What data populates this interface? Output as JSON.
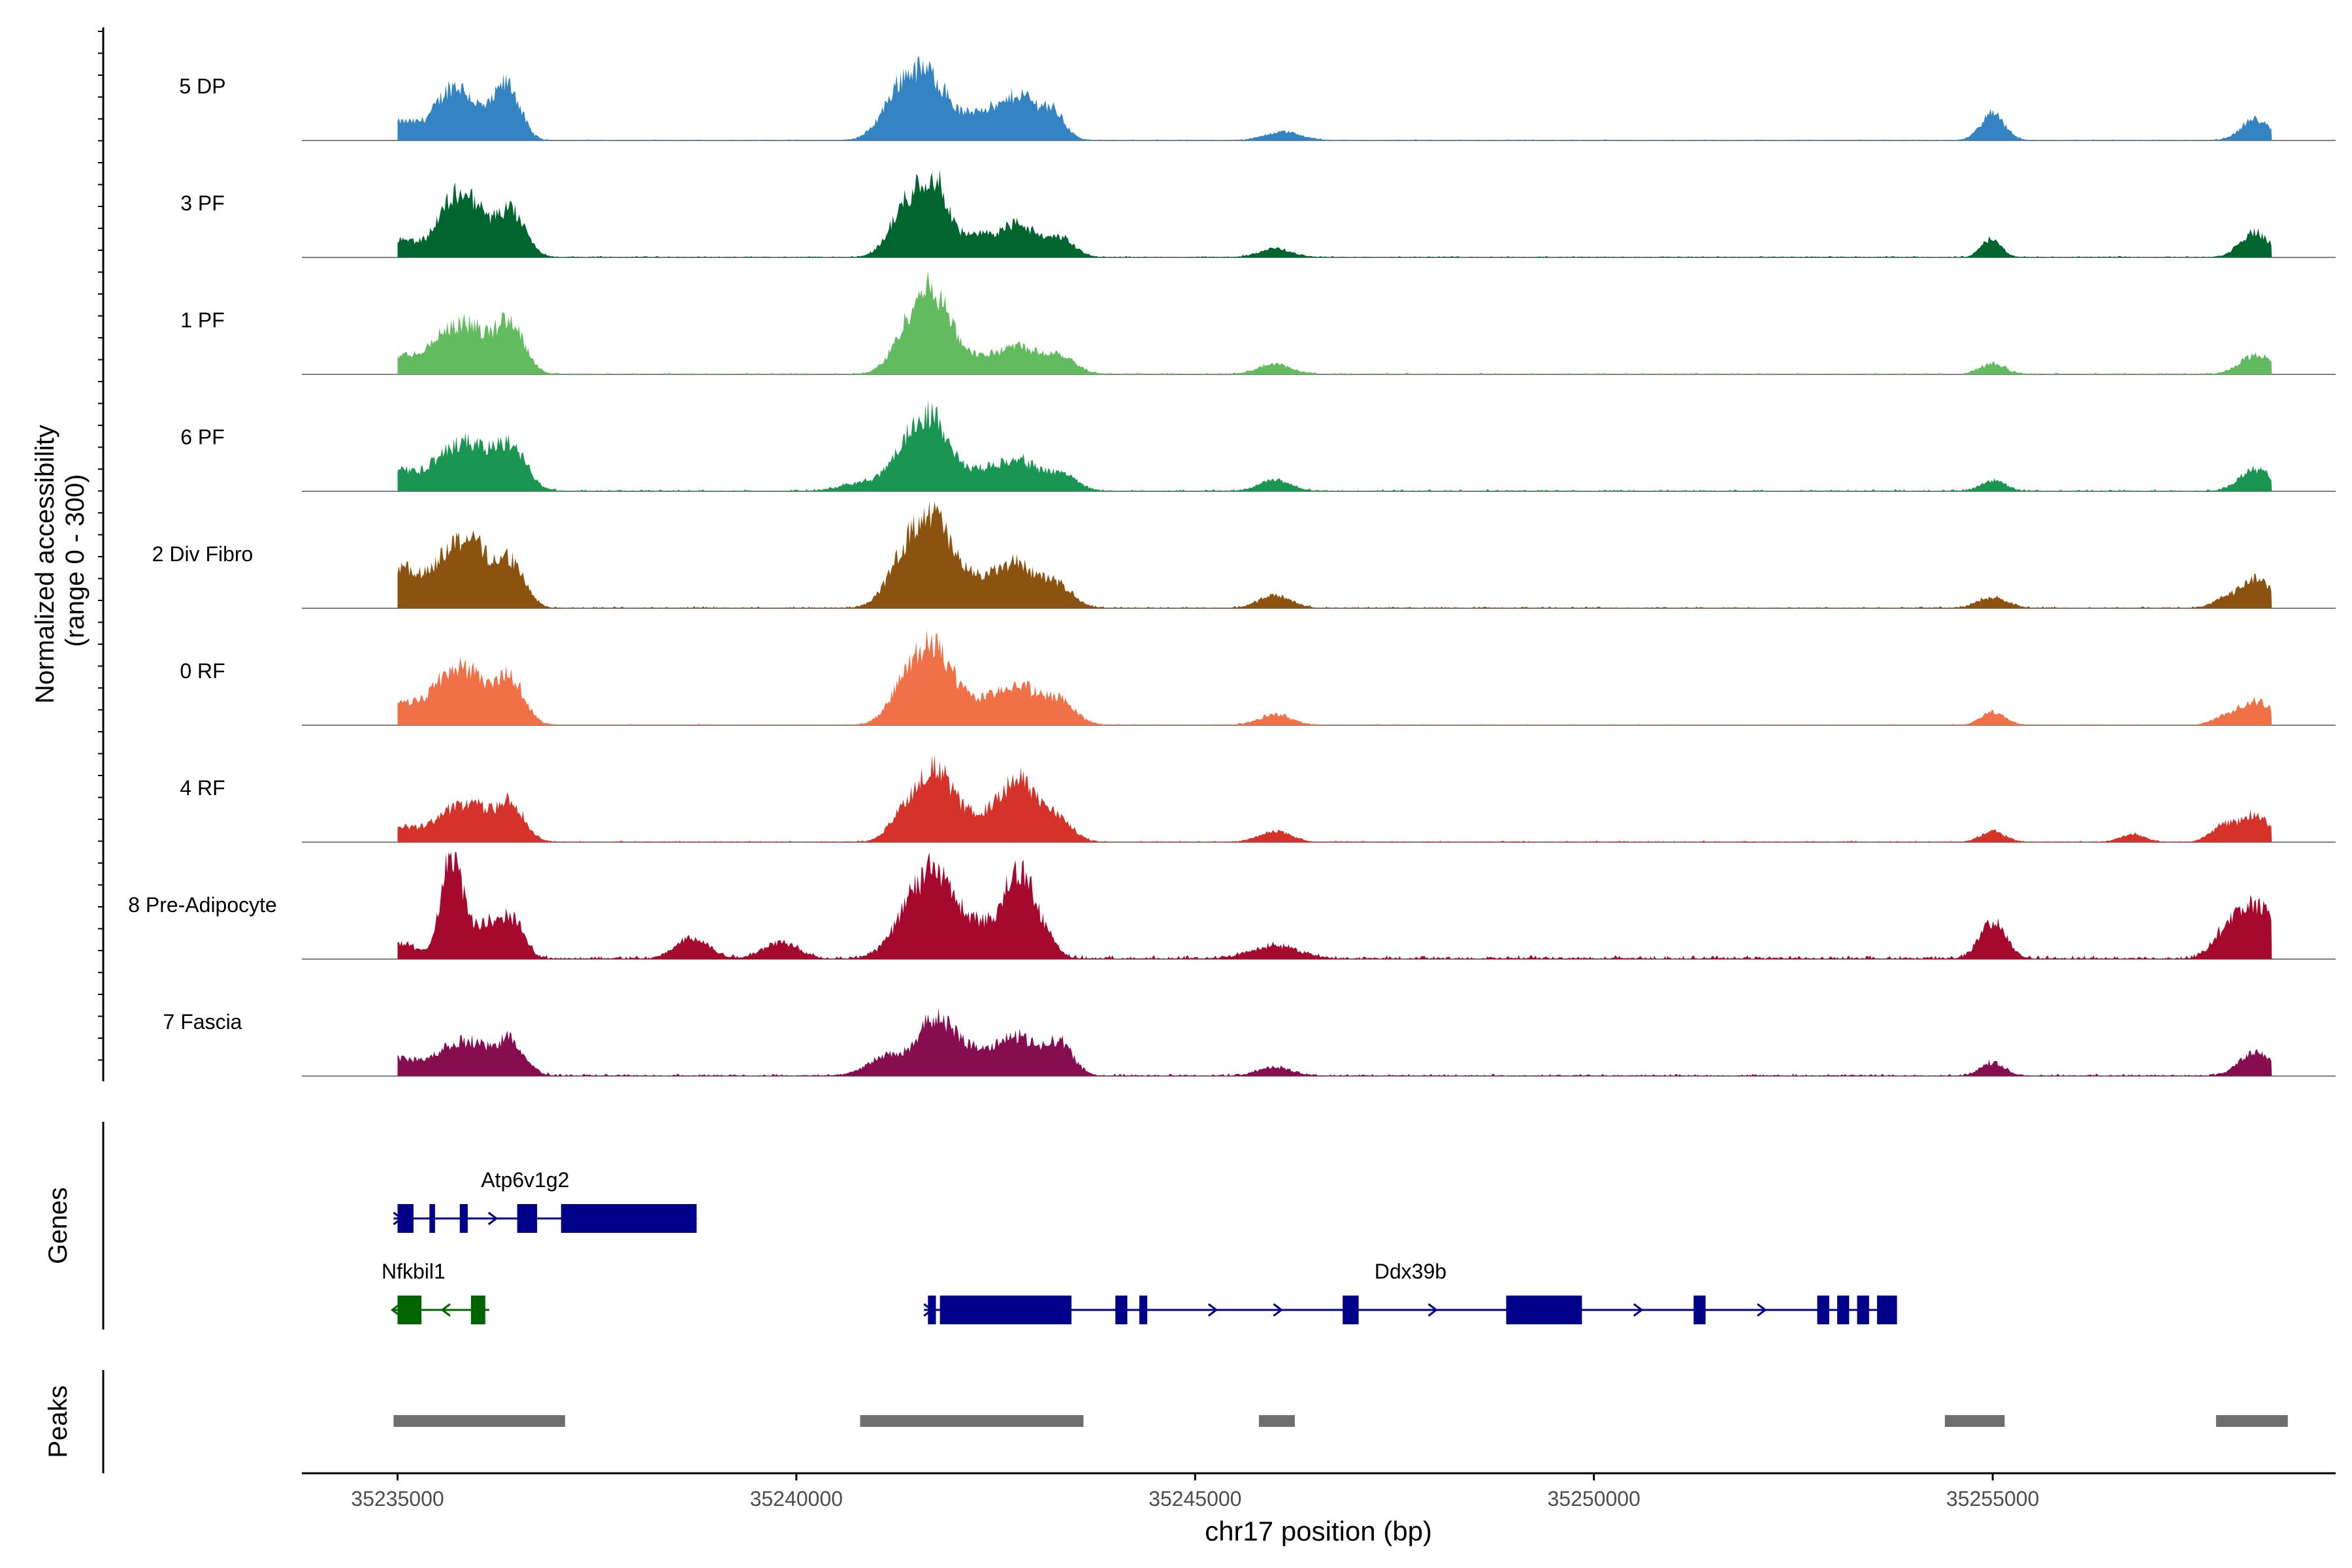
{
  "chart_data": {
    "type": "area",
    "title": "",
    "xlabel": "chr17 position (bp)",
    "ylabel_line1": "Normalized accessibility",
    "ylabel_line2": "(range 0 - 300)",
    "xlim": [
      35233800,
      35259300
    ],
    "y_range": [
      0,
      300
    ],
    "x_ticks": [
      35235000,
      35240000,
      35245000,
      35250000,
      35255000
    ],
    "x_tick_labels": [
      "35235000",
      "35240000",
      "35245000",
      "35250000",
      "35255000"
    ],
    "track_x_start": 35235000,
    "track_x_end": 35258500,
    "tracks": [
      {
        "name": "5 DP",
        "color": "#3484c4",
        "peaks": [
          [
            35235050,
            0.17,
            240
          ],
          [
            35235680,
            0.45,
            210
          ],
          [
            35236000,
            0.17,
            200
          ],
          [
            35236380,
            0.5,
            160
          ],
          [
            35241350,
            0.52,
            240
          ],
          [
            35241750,
            0.45,
            220
          ],
          [
            35242350,
            0.28,
            200
          ],
          [
            35242800,
            0.4,
            180
          ],
          [
            35243200,
            0.28,
            160
          ],
          [
            35246100,
            0.08,
            220
          ],
          [
            35255000,
            0.25,
            150
          ],
          [
            35258300,
            0.2,
            180
          ]
        ],
        "noise": 0.012
      },
      {
        "name": "3 PF",
        "color": "#00652f",
        "peaks": [
          [
            35235000,
            0.17,
            280
          ],
          [
            35235700,
            0.5,
            200
          ],
          [
            35236000,
            0.3,
            180
          ],
          [
            35236420,
            0.42,
            180
          ],
          [
            35241400,
            0.5,
            210
          ],
          [
            35241750,
            0.6,
            170
          ],
          [
            35242300,
            0.2,
            250
          ],
          [
            35242800,
            0.28,
            200
          ],
          [
            35243300,
            0.18,
            180
          ],
          [
            35246000,
            0.08,
            200
          ],
          [
            35254980,
            0.17,
            120
          ],
          [
            35258280,
            0.23,
            180
          ]
        ],
        "noise": 0.015
      },
      {
        "name": "1 PF",
        "color": "#62bb5f",
        "peaks": [
          [
            35235000,
            0.16,
            260
          ],
          [
            35235700,
            0.43,
            260
          ],
          [
            35236000,
            0.17,
            150
          ],
          [
            35236400,
            0.5,
            180
          ],
          [
            35241450,
            0.44,
            220
          ],
          [
            35241750,
            0.52,
            200
          ],
          [
            35242200,
            0.16,
            350
          ],
          [
            35242800,
            0.22,
            230
          ],
          [
            35243300,
            0.17,
            200
          ],
          [
            35246000,
            0.1,
            200
          ],
          [
            35255000,
            0.1,
            150
          ],
          [
            35258300,
            0.18,
            200
          ]
        ],
        "noise": 0.018
      },
      {
        "name": "6 PF",
        "color": "#1b9652",
        "peaks": [
          [
            35235000,
            0.2,
            260
          ],
          [
            35235700,
            0.38,
            240
          ],
          [
            35236000,
            0.2,
            160
          ],
          [
            35236400,
            0.45,
            200
          ],
          [
            35240900,
            0.08,
            300
          ],
          [
            35241450,
            0.45,
            220
          ],
          [
            35241750,
            0.47,
            190
          ],
          [
            35242300,
            0.2,
            300
          ],
          [
            35242800,
            0.25,
            200
          ],
          [
            35243300,
            0.17,
            200
          ],
          [
            35246000,
            0.1,
            200
          ],
          [
            35255000,
            0.1,
            150
          ],
          [
            35258300,
            0.2,
            200
          ]
        ],
        "noise": 0.022
      },
      {
        "name": "2 Div Fibro",
        "color": "#8c520f",
        "peaks": [
          [
            35235000,
            0.38,
            240
          ],
          [
            35235700,
            0.55,
            250
          ],
          [
            35236000,
            0.3,
            160
          ],
          [
            35236400,
            0.45,
            180
          ],
          [
            35241400,
            0.48,
            240
          ],
          [
            35241750,
            0.68,
            220
          ],
          [
            35242300,
            0.25,
            250
          ],
          [
            35242800,
            0.38,
            230
          ],
          [
            35243300,
            0.2,
            180
          ],
          [
            35246000,
            0.12,
            200
          ],
          [
            35255000,
            0.1,
            180
          ],
          [
            35258300,
            0.27,
            200
          ],
          [
            35257900,
            0.07,
            150
          ]
        ],
        "noise": 0.02
      },
      {
        "name": "0 RF",
        "color": "#f07048",
        "peaks": [
          [
            35235000,
            0.2,
            250
          ],
          [
            35235700,
            0.5,
            260
          ],
          [
            35236000,
            0.17,
            150
          ],
          [
            35236400,
            0.45,
            180
          ],
          [
            35241400,
            0.38,
            220
          ],
          [
            35241750,
            0.58,
            220
          ],
          [
            35242300,
            0.2,
            300
          ],
          [
            35242800,
            0.32,
            230
          ],
          [
            35243300,
            0.22,
            200
          ],
          [
            35246000,
            0.1,
            200
          ],
          [
            35255000,
            0.12,
            150
          ],
          [
            35257900,
            0.07,
            150
          ],
          [
            35258300,
            0.22,
            200
          ]
        ],
        "noise": 0.012
      },
      {
        "name": "4 RF",
        "color": "#d5332a",
        "peaks": [
          [
            35235000,
            0.15,
            240
          ],
          [
            35235700,
            0.3,
            240
          ],
          [
            35236000,
            0.18,
            150
          ],
          [
            35236400,
            0.38,
            180
          ],
          [
            35241400,
            0.3,
            200
          ],
          [
            35241750,
            0.55,
            200
          ],
          [
            35242200,
            0.22,
            300
          ],
          [
            35242800,
            0.55,
            240
          ],
          [
            35243300,
            0.18,
            180
          ],
          [
            35246000,
            0.1,
            200
          ],
          [
            35255000,
            0.1,
            150
          ],
          [
            35256750,
            0.07,
            150
          ],
          [
            35257900,
            0.15,
            160
          ],
          [
            35258300,
            0.25,
            180
          ]
        ],
        "noise": 0.015
      },
      {
        "name": "8 Pre-Adipocyte",
        "color": "#a6092e",
        "peaks": [
          [
            35235000,
            0.15,
            220
          ],
          [
            35235650,
            0.75,
            120
          ],
          [
            35235800,
            0.35,
            140
          ],
          [
            35236150,
            0.3,
            140
          ],
          [
            35236450,
            0.35,
            140
          ],
          [
            35238700,
            0.2,
            200
          ],
          [
            35239800,
            0.15,
            220
          ],
          [
            35241500,
            0.5,
            260
          ],
          [
            35241800,
            0.45,
            220
          ],
          [
            35242300,
            0.3,
            300
          ],
          [
            35242750,
            0.6,
            160
          ],
          [
            35243000,
            0.35,
            180
          ],
          [
            35246000,
            0.12,
            300
          ],
          [
            35255000,
            0.35,
            160
          ],
          [
            35258300,
            0.5,
            260
          ],
          [
            35257900,
            0.15,
            160
          ]
        ],
        "noise": 0.04
      },
      {
        "name": "7 Fascia",
        "color": "#870d51",
        "peaks": [
          [
            35235000,
            0.16,
            240
          ],
          [
            35235700,
            0.28,
            240
          ],
          [
            35236000,
            0.15,
            150
          ],
          [
            35236400,
            0.35,
            180
          ],
          [
            35241150,
            0.18,
            250
          ],
          [
            35241750,
            0.5,
            220
          ],
          [
            35242300,
            0.22,
            300
          ],
          [
            35242800,
            0.3,
            230
          ],
          [
            35243300,
            0.3,
            170
          ],
          [
            35246000,
            0.08,
            200
          ],
          [
            35255000,
            0.12,
            150
          ],
          [
            35258300,
            0.22,
            200
          ]
        ],
        "noise": 0.025
      }
    ],
    "genes_label": "Genes",
    "genes": [
      {
        "name": "Atp6v1g2",
        "strand": "+",
        "color": "#00008b",
        "row": 0,
        "start": 35234950,
        "end": 35238750,
        "label_x": 35236600,
        "exons": [
          [
            35235000,
            35235200
          ],
          [
            35235400,
            35235470
          ],
          [
            35235780,
            35235880
          ],
          [
            35236500,
            35236750
          ],
          [
            35237050,
            35238750
          ]
        ]
      },
      {
        "name": "Nfkbil1",
        "strand": "-",
        "color": "#006400",
        "row": 1,
        "start": 35234950,
        "end": 35236150,
        "label_x": 35235200,
        "exons": [
          [
            35235000,
            35235300
          ],
          [
            35235920,
            35236100
          ]
        ]
      },
      {
        "name": "Ddx39b",
        "strand": "+",
        "color": "#00008b",
        "row": 1,
        "start": 35241600,
        "end": 35253800,
        "label_x": 35247700,
        "exons": [
          [
            35241650,
            35241750
          ],
          [
            35241800,
            35243450
          ],
          [
            35244000,
            35244150
          ],
          [
            35244300,
            35244400
          ],
          [
            35246850,
            35247050
          ],
          [
            35248900,
            35249850
          ],
          [
            35251250,
            35251400
          ],
          [
            35252800,
            35252950
          ],
          [
            35253050,
            35253200
          ],
          [
            35253300,
            35253450
          ],
          [
            35253550,
            35253800
          ]
        ]
      }
    ],
    "peaks_label": "Peaks",
    "peak_regions": [
      [
        35234950,
        35237100
      ],
      [
        35240800,
        35243600
      ],
      [
        35245800,
        35246250
      ],
      [
        35254400,
        35255150
      ],
      [
        35257800,
        35258700
      ]
    ]
  }
}
